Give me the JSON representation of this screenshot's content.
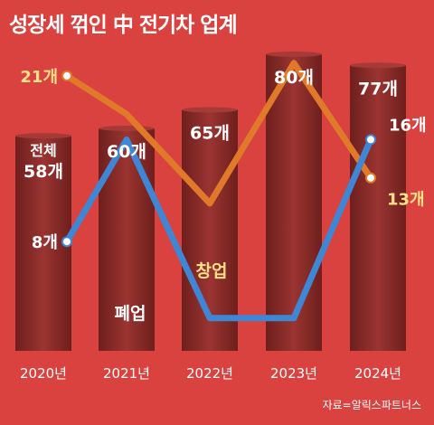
{
  "title": "성장세 꺾인 中 전기차 업계",
  "source": "자료=알릭스파트너스",
  "colors": {
    "background": "#d9423f",
    "bar": "#8a2d2a",
    "startups": "#e07a2a",
    "closures": "#3f86d4",
    "label_white": "#ffffff",
    "label_yellow": "#ffe08a"
  },
  "chart_data": {
    "type": "bar",
    "categories": [
      "2020년",
      "2021년",
      "2022년",
      "2023년",
      "2024년"
    ],
    "total": {
      "header": "전체",
      "values": [
        58,
        60,
        65,
        80,
        77
      ],
      "labels": [
        "58개",
        "60개",
        "65개",
        "80개",
        "77개"
      ]
    },
    "lines": [
      {
        "name": "창업",
        "values": [
          21,
          18,
          11,
          22,
          13
        ],
        "labels": [
          "21개",
          "",
          "",
          "",
          "13개"
        ]
      },
      {
        "name": "폐업",
        "values": [
          8,
          16,
          2,
          2,
          16
        ],
        "labels": [
          "8개",
          "",
          "",
          "",
          "16개"
        ]
      }
    ]
  }
}
